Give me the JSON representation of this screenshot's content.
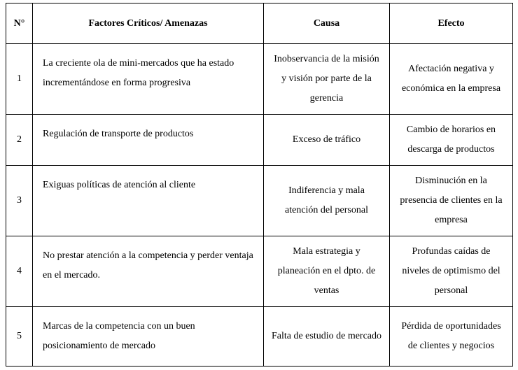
{
  "table": {
    "columns": {
      "num": "N°",
      "factor": "Factores Críticos/ Amenazas",
      "causa": "Causa",
      "efecto": "Efecto"
    },
    "rows": [
      {
        "num": "1",
        "factor": "La creciente ola de mini-mercados que ha estado incrementándose en forma progresiva",
        "causa": "Inobservancia de la misión y visión  por parte de la gerencia",
        "efecto": "Afectación negativa y económica en la empresa"
      },
      {
        "num": "2",
        "factor": "Regulación de transporte de productos",
        "causa": "Exceso de tráfico",
        "efecto": "Cambio de horarios en descarga de productos"
      },
      {
        "num": "3",
        "factor": "Exiguas políticas de atención al cliente",
        "causa": "Indiferencia y mala atención del personal",
        "efecto": "Disminución en la presencia de clientes en la empresa"
      },
      {
        "num": "4",
        "factor": "No prestar atención a la competencia y perder ventaja en el mercado.",
        "causa": "Mala estrategia y planeación en el dpto. de ventas",
        "efecto": "Profundas caídas de niveles de optimismo del personal"
      },
      {
        "num": "5",
        "factor": "Marcas de la competencia con un buen posicionamiento de mercado",
        "causa": "Falta de estudio de mercado",
        "efecto": "Pérdida de oportunidades de clientes y negocios"
      }
    ],
    "col_widths": {
      "num": 38,
      "factor": 330,
      "causa": 180,
      "efecto": 176
    },
    "border_color": "#000000",
    "background_color": "#ffffff",
    "font_family": "Times New Roman",
    "header_fontsize": 14,
    "body_fontsize": 14,
    "line_height": 2.0
  }
}
